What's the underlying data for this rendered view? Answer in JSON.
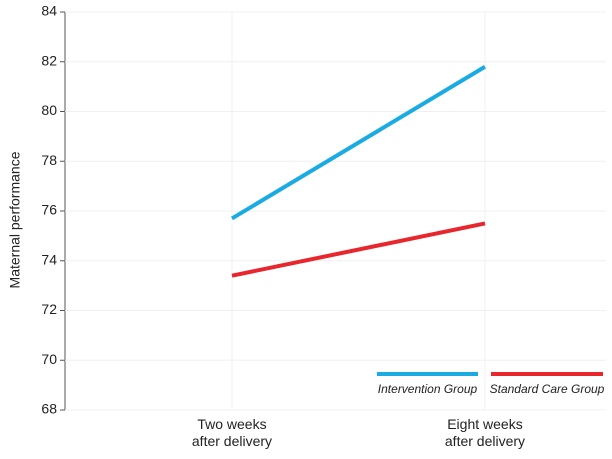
{
  "chart_data": {
    "type": "line",
    "y_label": "Maternal performance",
    "categories": [
      "Two weeks after delivery",
      "Eight weeks after delivery"
    ],
    "series": [
      {
        "name": "Intervention Group",
        "color": "#1aabe2",
        "values": [
          75.7,
          81.8
        ]
      },
      {
        "name": "Standard Care Group",
        "color": "#e8262d",
        "values": [
          73.4,
          75.5
        ]
      }
    ],
    "ylim": [
      68,
      84
    ],
    "yticks": [
      68,
      70,
      72,
      74,
      76,
      78,
      80,
      82,
      84
    ],
    "grid": true
  }
}
